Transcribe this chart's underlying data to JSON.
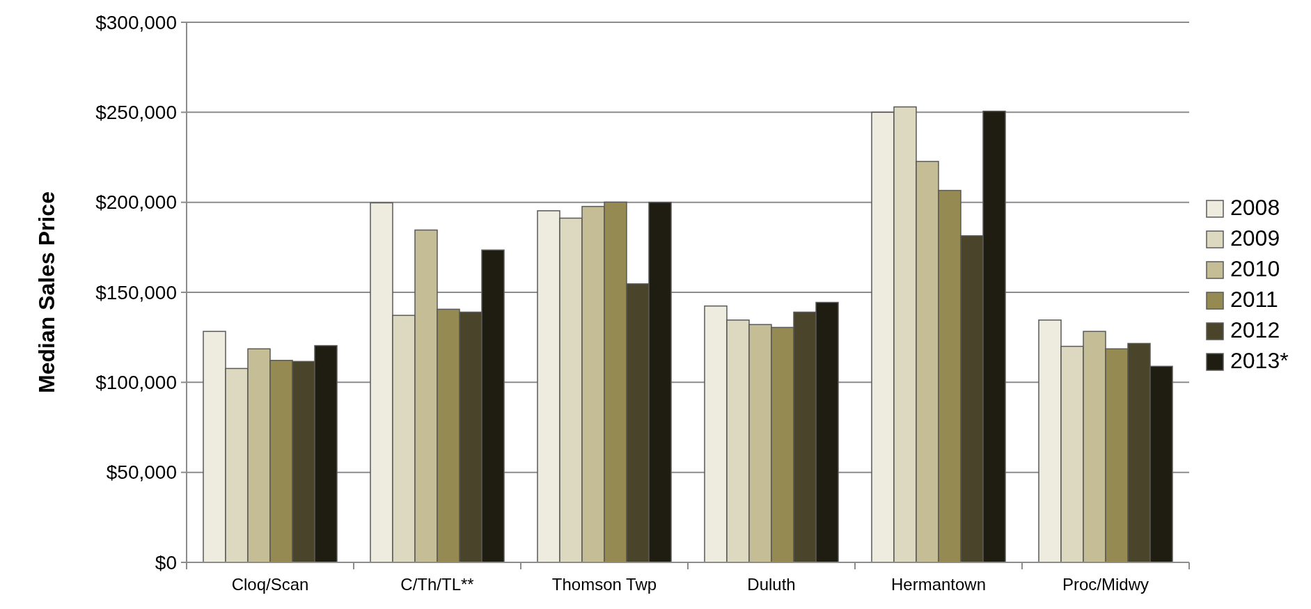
{
  "chart_data": {
    "type": "bar",
    "ylabel": "Median Sales Price",
    "categories": [
      "Cloq/Scan",
      "C/Th/TL**",
      "Thomson Twp",
      "Duluth",
      "Hermantown",
      "Proc/Midwy"
    ],
    "series": [
      {
        "name": "2008",
        "color": "#eeebdf",
        "values": [
          128300,
          199700,
          195300,
          142400,
          250000,
          134600
        ]
      },
      {
        "name": "2009",
        "color": "#ddd8c0",
        "values": [
          107700,
          137200,
          191200,
          134600,
          253000,
          120000
        ]
      },
      {
        "name": "2010",
        "color": "#c5bd95",
        "values": [
          118600,
          184600,
          197700,
          132100,
          222700,
          128300
        ]
      },
      {
        "name": "2011",
        "color": "#958a52",
        "values": [
          112200,
          140600,
          200100,
          130500,
          206600,
          118600
        ]
      },
      {
        "name": "2012",
        "color": "#4a442b",
        "values": [
          111600,
          139000,
          154700,
          139000,
          181400,
          121600
        ]
      },
      {
        "name": "2013*",
        "color": "#1f1d12",
        "values": [
          120400,
          173500,
          200000,
          144400,
          250600,
          108900
        ]
      }
    ],
    "ylim": [
      0,
      300000
    ],
    "yticks": [
      {
        "value": 0,
        "label": "$0"
      },
      {
        "value": 50000,
        "label": "$50,000"
      },
      {
        "value": 100000,
        "label": "$100,000"
      },
      {
        "value": 150000,
        "label": "$150,000"
      },
      {
        "value": 200000,
        "label": "$200,000"
      },
      {
        "value": 250000,
        "label": "$250,000"
      },
      {
        "value": 300000,
        "label": "$300,000"
      }
    ],
    "grid": "y",
    "legend": "right"
  }
}
